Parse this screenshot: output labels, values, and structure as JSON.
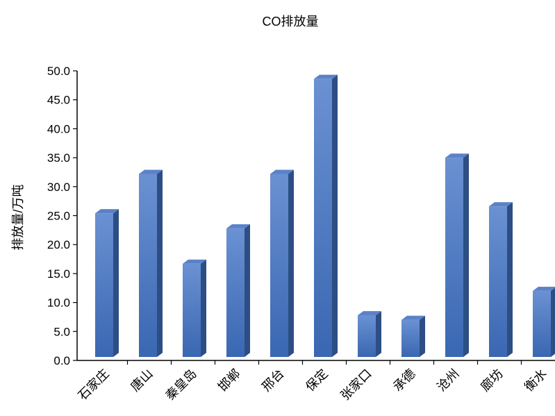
{
  "chart_data": {
    "type": "bar",
    "title": "CO排放量",
    "xlabel": "",
    "ylabel": "排放量/万吨",
    "ylim": [
      0,
      50
    ],
    "yticks": [
      "0.0",
      "5.0",
      "10.0",
      "15.0",
      "20.0",
      "25.0",
      "30.0",
      "35.0",
      "40.0",
      "45.0",
      "50.0"
    ],
    "categories": [
      "石家庄",
      "唐山",
      "秦皇岛",
      "邯郸",
      "邢台",
      "保定",
      "张家口",
      "承德",
      "沧州",
      "廊坊",
      "衡水"
    ],
    "values": [
      24.8,
      31.6,
      16.1,
      22.2,
      31.6,
      48.0,
      7.2,
      6.4,
      34.4,
      26.0,
      11.4
    ],
    "grid": false,
    "legend": "none",
    "colors": {
      "bar_front": "#4a75bd",
      "bar_side": "#2d4e84",
      "bar_top": "#5b82c8"
    }
  }
}
